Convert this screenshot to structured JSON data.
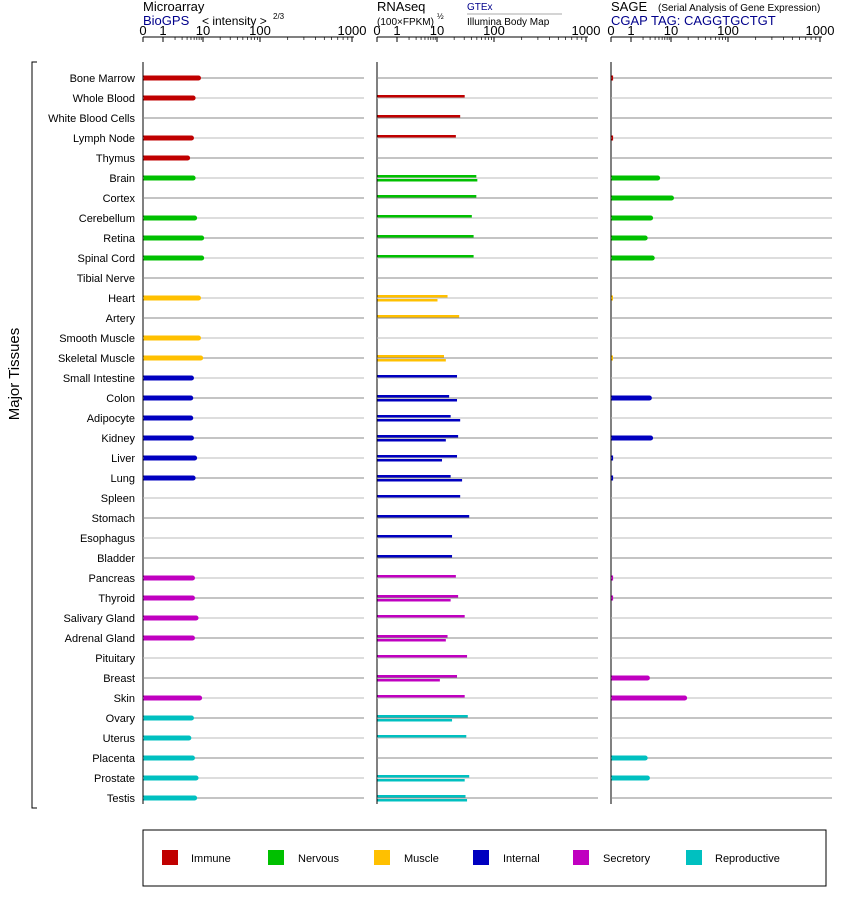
{
  "chart_data": {
    "type": "bar",
    "ylabel": "Major Tissues",
    "tissues": [
      "Bone Marrow",
      "Whole Blood",
      "White Blood Cells",
      "Lymph Node",
      "Thymus",
      "Brain",
      "Cortex",
      "Cerebellum",
      "Retina",
      "Spinal Cord",
      "Tibial Nerve",
      "Heart",
      "Artery",
      "Smooth Muscle",
      "Skeletal Muscle",
      "Small Intestine",
      "Colon",
      "Adipocyte",
      "Kidney",
      "Liver",
      "Lung",
      "Spleen",
      "Stomach",
      "Esophagus",
      "Bladder",
      "Pancreas",
      "Thyroid",
      "Salivary Gland",
      "Adrenal Gland",
      "Pituitary",
      "Breast",
      "Skin",
      "Ovary",
      "Uterus",
      "Placenta",
      "Prostate",
      "Testis"
    ],
    "groups": [
      "Immune",
      "Immune",
      "Immune",
      "Immune",
      "Immune",
      "Nervous",
      "Nervous",
      "Nervous",
      "Nervous",
      "Nervous",
      "Nervous",
      "Muscle",
      "Muscle",
      "Muscle",
      "Muscle",
      "Internal",
      "Internal",
      "Internal",
      "Internal",
      "Internal",
      "Internal",
      "Internal",
      "Internal",
      "Internal",
      "Internal",
      "Secretory",
      "Secretory",
      "Secretory",
      "Secretory",
      "Secretory",
      "Secretory",
      "Secretory",
      "Reproductive",
      "Reproductive",
      "Reproductive",
      "Reproductive",
      "Reproductive"
    ],
    "legend": [
      {
        "name": "Immune",
        "color": "#c00000"
      },
      {
        "name": "Nervous",
        "color": "#00c000"
      },
      {
        "name": "Muscle",
        "color": "#ffc000"
      },
      {
        "name": "Internal",
        "color": "#0000c0"
      },
      {
        "name": "Secretory",
        "color": "#c000c0"
      },
      {
        "name": "Reproductive",
        "color": "#00c0c0"
      }
    ],
    "ticks": [
      {
        "label": "0",
        "value": 0
      },
      {
        "label": "1",
        "value": 1
      },
      {
        "label": "10",
        "value": 10
      },
      {
        "label": "100",
        "value": 100
      },
      {
        "label": "1000",
        "value": 1000
      }
    ],
    "panels": [
      {
        "title": "Microarray",
        "source": "BioGPS",
        "units": "< intensity >",
        "units_exp": "2/3",
        "xlim": [
          0,
          1000
        ],
        "values": [
          [
            7.5
          ],
          [
            5.5
          ],
          [
            null
          ],
          [
            5
          ],
          [
            4
          ],
          [
            5.5
          ],
          [
            null
          ],
          [
            6
          ],
          [
            9
          ],
          [
            9
          ],
          [
            null
          ],
          [
            7.5
          ],
          [
            null
          ],
          [
            7.5
          ],
          [
            8.5
          ],
          [
            5
          ],
          [
            4.8
          ],
          [
            4.8
          ],
          [
            5
          ],
          [
            6
          ],
          [
            5.5
          ],
          [
            null
          ],
          [
            null
          ],
          [
            null
          ],
          [
            null
          ],
          [
            5.3
          ],
          [
            5.3
          ],
          [
            6.5
          ],
          [
            5.3
          ],
          [
            null
          ],
          [
            null
          ],
          [
            8
          ],
          [
            5
          ],
          [
            4.3
          ],
          [
            5.3
          ],
          [
            6.5
          ],
          [
            6
          ]
        ]
      },
      {
        "title": "RNAseq",
        "units": "(100×FPKM)",
        "units_exp": "½",
        "source_top": "GTEx",
        "source_bottom": "Illumina Body Map",
        "xlim": [
          0,
          1000
        ],
        "values": [
          [
            null
          ],
          [
            30
          ],
          [
            25
          ],
          [
            21
          ],
          [
            null
          ],
          [
            48,
            50
          ],
          [
            48
          ],
          [
            40
          ],
          [
            43
          ],
          [
            43
          ],
          [
            null
          ],
          [
            15,
            10
          ],
          [
            24
          ],
          [
            null
          ],
          [
            13,
            14
          ],
          [
            22
          ],
          [
            16,
            22
          ],
          [
            17,
            25
          ],
          [
            23,
            14
          ],
          [
            22,
            12
          ],
          [
            17,
            27
          ],
          [
            25
          ],
          [
            36
          ],
          [
            18
          ],
          [
            18
          ],
          [
            21
          ],
          [
            23,
            17
          ],
          [
            30
          ],
          [
            15,
            14
          ],
          [
            33
          ],
          [
            22,
            11
          ],
          [
            30
          ],
          [
            34,
            18
          ],
          [
            32
          ],
          [
            null
          ],
          [
            36,
            30
          ],
          [
            31,
            33
          ]
        ]
      },
      {
        "title": "SAGE",
        "subtitle": "(Serial Analysis of Gene Expression)",
        "tag_label": "CGAP  TAG: CAGGTGCTGT",
        "xlim": [
          0,
          1000
        ],
        "values": [
          [
            0.08
          ],
          [
            null
          ],
          [
            null
          ],
          [
            0.08
          ],
          [
            null
          ],
          [
            4.5
          ],
          [
            10
          ],
          [
            3
          ],
          [
            2.2
          ],
          [
            3.3
          ],
          [
            null
          ],
          [
            0.05
          ],
          [
            null
          ],
          [
            null
          ],
          [
            0.05
          ],
          [
            null
          ],
          [
            2.8
          ],
          [
            null
          ],
          [
            3
          ],
          [
            0.08
          ],
          [
            0.08
          ],
          [
            null
          ],
          [
            null
          ],
          [
            null
          ],
          [
            null
          ],
          [
            0.08
          ],
          [
            0.08
          ],
          [
            null
          ],
          [
            null
          ],
          [
            null
          ],
          [
            2.5
          ],
          [
            17
          ],
          [
            null
          ],
          [
            null
          ],
          [
            2.2
          ],
          [
            2.5
          ],
          [
            null
          ]
        ]
      }
    ]
  }
}
